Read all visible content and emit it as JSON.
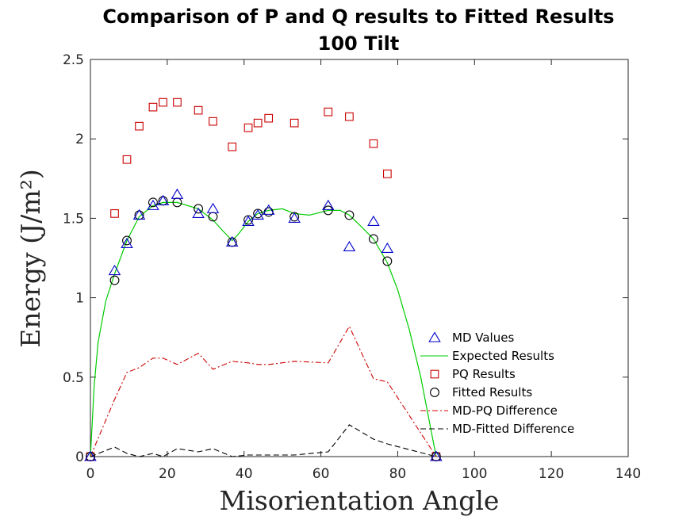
{
  "chart_data": {
    "type": "scatter",
    "title_line1": "Comparison of P and Q results to Fitted Results",
    "title_line2": "100 Tilt",
    "xlabel": "Misorientation Angle",
    "ylabel": "Energy (J/m²)",
    "xlim": [
      0,
      140
    ],
    "ylim": [
      0,
      2.5
    ],
    "xticks": [
      0,
      20,
      40,
      60,
      80,
      100,
      120,
      140
    ],
    "yticks": [
      0,
      0.5,
      1,
      1.5,
      2,
      2.5
    ],
    "xtick_labels": [
      "0",
      "20",
      "40",
      "60",
      "80",
      "100",
      "120",
      "140"
    ],
    "ytick_labels": [
      "0",
      "0.5",
      "1",
      "1.5",
      "2",
      "2.5"
    ],
    "grid": false,
    "legend_position": "bottom-right",
    "series": [
      {
        "name": "MD Values",
        "marker": "triangle",
        "color": "#0000cc",
        "x": [
          0,
          6.3,
          9.5,
          12.7,
          16.3,
          18.9,
          22.6,
          28.1,
          31.9,
          36.9,
          41.1,
          43.6,
          46.4,
          53.1,
          61.9,
          67.4,
          73.7,
          77.3,
          90
        ],
        "y": [
          0,
          1.17,
          1.34,
          1.52,
          1.58,
          1.61,
          1.65,
          1.53,
          1.56,
          1.35,
          1.48,
          1.52,
          1.55,
          1.5,
          1.58,
          1.32,
          1.48,
          1.31,
          0
        ]
      },
      {
        "name": "Expected Results",
        "marker": "line",
        "color": "#00cc00",
        "x": [
          0,
          1,
          2,
          4,
          6.3,
          9.5,
          12.7,
          16.3,
          18.9,
          22.6,
          28.1,
          31.9,
          34.5,
          36.9,
          38.5,
          41.1,
          43.6,
          46.4,
          50,
          53.1,
          57,
          61.9,
          65,
          67.4,
          70,
          73.7,
          77.3,
          80,
          83,
          86,
          88,
          90
        ],
        "y": [
          0,
          0.45,
          0.72,
          0.98,
          1.15,
          1.36,
          1.51,
          1.58,
          1.6,
          1.6,
          1.56,
          1.49,
          1.42,
          1.36,
          1.4,
          1.48,
          1.53,
          1.55,
          1.56,
          1.53,
          1.52,
          1.55,
          1.55,
          1.52,
          1.46,
          1.37,
          1.22,
          1.05,
          0.8,
          0.5,
          0.25,
          0
        ]
      },
      {
        "name": "PQ Results",
        "marker": "square",
        "color": "#cc0000",
        "x": [
          0,
          6.3,
          9.5,
          12.7,
          16.3,
          18.9,
          22.6,
          28.1,
          31.9,
          36.9,
          41.1,
          43.6,
          46.4,
          53.1,
          61.9,
          67.4,
          73.7,
          77.3,
          90
        ],
        "y": [
          0,
          1.53,
          1.87,
          2.08,
          2.2,
          2.23,
          2.23,
          2.18,
          2.11,
          1.95,
          2.07,
          2.1,
          2.13,
          2.1,
          2.17,
          2.14,
          1.97,
          1.78,
          0
        ]
      },
      {
        "name": "Fitted Results",
        "marker": "circle",
        "color": "#000000",
        "x": [
          0,
          6.3,
          9.5,
          12.7,
          16.3,
          18.9,
          22.6,
          28.1,
          31.9,
          36.9,
          41.1,
          43.6,
          46.4,
          53.1,
          61.9,
          67.4,
          73.7,
          77.3,
          90
        ],
        "y": [
          0,
          1.11,
          1.36,
          1.52,
          1.6,
          1.61,
          1.6,
          1.56,
          1.51,
          1.35,
          1.49,
          1.53,
          1.54,
          1.51,
          1.55,
          1.52,
          1.37,
          1.23,
          0
        ]
      },
      {
        "name": "MD-PQ Difference",
        "marker": "dashdot",
        "color": "#cc0000",
        "x": [
          0,
          6.3,
          9.5,
          12.7,
          16.3,
          18.9,
          22.6,
          28.1,
          31.9,
          36.9,
          41.1,
          43.6,
          46.4,
          53.1,
          61.9,
          67.4,
          73.7,
          77.3,
          90
        ],
        "y": [
          0,
          0.36,
          0.53,
          0.56,
          0.62,
          0.62,
          0.58,
          0.65,
          0.55,
          0.6,
          0.59,
          0.58,
          0.58,
          0.6,
          0.59,
          0.82,
          0.49,
          0.47,
          0
        ]
      },
      {
        "name": "MD-Fitted Difference",
        "marker": "dashed",
        "color": "#000000",
        "x": [
          0,
          6.3,
          9.5,
          12.7,
          16.3,
          18.9,
          22.6,
          28.1,
          31.9,
          36.9,
          41.1,
          43.6,
          46.4,
          53.1,
          61.9,
          67.4,
          73.7,
          77.3,
          90
        ],
        "y": [
          0,
          0.06,
          0.02,
          0.0,
          0.02,
          0.0,
          0.05,
          0.03,
          0.05,
          0.0,
          0.01,
          0.01,
          0.01,
          0.01,
          0.03,
          0.2,
          0.11,
          0.08,
          0
        ]
      }
    ]
  }
}
